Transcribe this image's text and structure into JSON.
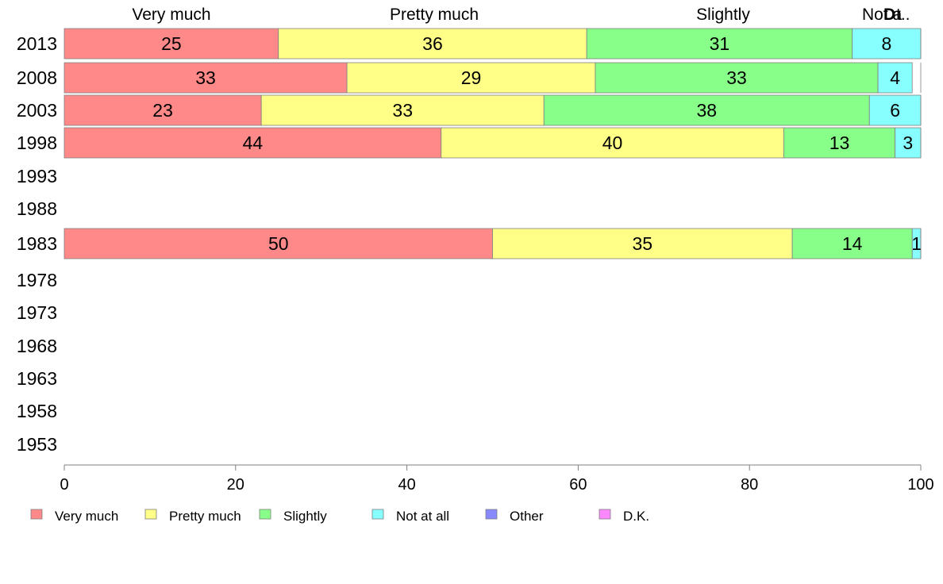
{
  "chart_data": {
    "type": "bar",
    "orientation": "horizontal",
    "stacked": true,
    "title": "",
    "xlabel": "",
    "ylabel": "",
    "xlim": [
      0,
      100
    ],
    "x_ticks": [
      "0",
      "20",
      "40",
      "60",
      "80",
      "100"
    ],
    "categories": [
      "2013",
      "2008",
      "2003",
      "1998",
      "1993",
      "1988",
      "1983",
      "1978",
      "1973",
      "1968",
      "1963",
      "1958",
      "1953"
    ],
    "top_labels": [
      "Very much",
      "Pretty much",
      "Slightly",
      "Not a",
      "D",
      "t.."
    ],
    "series": [
      {
        "name": "Very much",
        "color": "#ff8888",
        "values": [
          25,
          33,
          23,
          44,
          null,
          null,
          50,
          null,
          null,
          null,
          null,
          null,
          null
        ]
      },
      {
        "name": "Pretty much",
        "color": "#ffff88",
        "values": [
          36,
          29,
          33,
          40,
          null,
          null,
          35,
          null,
          null,
          null,
          null,
          null,
          null
        ]
      },
      {
        "name": "Slightly",
        "color": "#88ff88",
        "values": [
          31,
          33,
          38,
          13,
          null,
          null,
          14,
          null,
          null,
          null,
          null,
          null,
          null
        ]
      },
      {
        "name": "Not at all",
        "color": "#88ffff",
        "values": [
          8,
          4,
          6,
          3,
          null,
          null,
          1,
          null,
          null,
          null,
          null,
          null,
          null
        ]
      },
      {
        "name": "Other",
        "color": "#8888ff",
        "values": [
          0,
          0,
          0,
          0,
          null,
          null,
          0,
          null,
          null,
          null,
          null,
          null,
          null
        ]
      },
      {
        "name": "D.K.",
        "color": "#ff88ff",
        "values": [
          0,
          0,
          0,
          0,
          null,
          null,
          0,
          null,
          null,
          null,
          null,
          null,
          null
        ]
      }
    ],
    "legend_position": "bottom",
    "grid": false
  }
}
